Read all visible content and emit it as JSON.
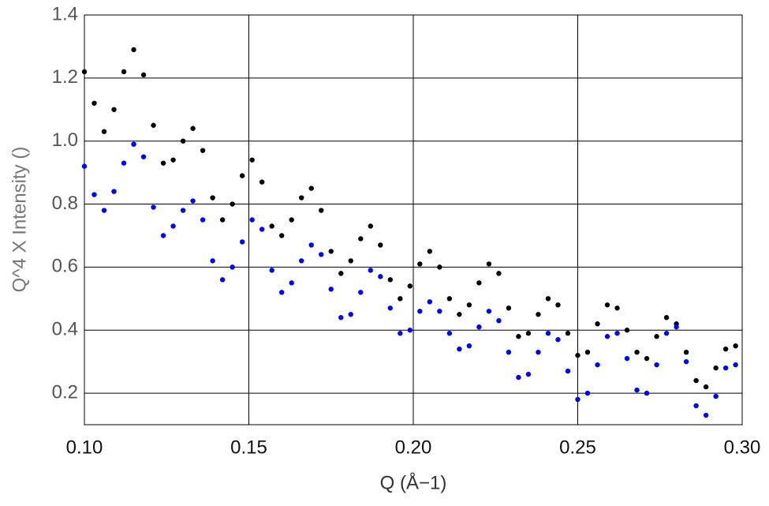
{
  "chart_data": {
    "type": "scatter",
    "x_label": "Q (Å−1)",
    "y_label": "Q^4 X Intensity ()",
    "x": [
      0.1,
      0.103,
      0.106,
      0.109,
      0.112,
      0.115,
      0.118,
      0.121,
      0.124,
      0.127,
      0.13,
      0.133,
      0.136,
      0.139,
      0.142,
      0.145,
      0.148,
      0.151,
      0.154,
      0.157,
      0.16,
      0.163,
      0.166,
      0.169,
      0.172,
      0.175,
      0.178,
      0.181,
      0.184,
      0.187,
      0.19,
      0.193,
      0.196,
      0.199,
      0.202,
      0.205,
      0.208,
      0.211,
      0.214,
      0.217,
      0.22,
      0.223,
      0.226,
      0.229,
      0.232,
      0.235,
      0.238,
      0.241,
      0.244,
      0.247,
      0.25,
      0.253,
      0.256,
      0.259,
      0.262,
      0.265,
      0.268,
      0.271,
      0.274,
      0.277,
      0.28,
      0.283,
      0.286,
      0.289,
      0.292,
      0.295,
      0.298
    ],
    "series": [
      {
        "color": "#000000",
        "values": [
          1.22,
          1.12,
          1.03,
          1.1,
          1.22,
          1.29,
          1.21,
          1.05,
          0.93,
          0.94,
          1.0,
          1.04,
          0.97,
          0.82,
          0.75,
          0.8,
          0.89,
          0.94,
          0.87,
          0.73,
          0.7,
          0.75,
          0.82,
          0.85,
          0.78,
          0.65,
          0.58,
          0.62,
          0.69,
          0.73,
          0.67,
          0.56,
          0.5,
          0.54,
          0.61,
          0.65,
          0.6,
          0.5,
          0.45,
          0.48,
          0.55,
          0.61,
          0.58,
          0.47,
          0.38,
          0.39,
          0.45,
          0.5,
          0.48,
          0.39,
          0.32,
          0.33,
          0.42,
          0.48,
          0.47,
          0.4,
          0.33,
          0.31,
          0.38,
          0.44,
          0.42,
          0.33,
          0.24,
          0.22,
          0.28,
          0.34,
          0.35
        ]
      },
      {
        "color": "#0000ff",
        "values": [
          0.92,
          0.83,
          0.78,
          0.84,
          0.93,
          0.99,
          0.95,
          0.79,
          0.7,
          0.73,
          0.78,
          0.81,
          0.75,
          0.62,
          0.56,
          0.6,
          0.68,
          0.75,
          0.72,
          0.59,
          0.52,
          0.55,
          0.62,
          0.67,
          0.64,
          0.53,
          0.44,
          0.45,
          0.52,
          0.59,
          0.57,
          0.47,
          0.39,
          0.4,
          0.46,
          0.49,
          0.46,
          0.39,
          0.34,
          0.35,
          0.41,
          0.46,
          0.43,
          0.33,
          0.25,
          0.26,
          0.33,
          0.39,
          0.37,
          0.27,
          0.18,
          0.2,
          0.29,
          0.38,
          0.39,
          0.31,
          0.21,
          0.2,
          0.29,
          0.39,
          0.41,
          0.3,
          0.16,
          0.13,
          0.19,
          0.28,
          0.29
        ]
      }
    ],
    "xlim": [
      0.1,
      0.3
    ],
    "ylim": [
      0.1,
      1.4
    ],
    "xticks": [
      {
        "value": 0.1,
        "label": "0.10"
      },
      {
        "value": 0.15,
        "label": "0.15"
      },
      {
        "value": 0.2,
        "label": "0.20"
      },
      {
        "value": 0.25,
        "label": "0.25"
      },
      {
        "value": 0.3,
        "label": "0.30"
      }
    ],
    "yticks": [
      0.2,
      0.4,
      0.6,
      0.8,
      {
        "value": 1.0,
        "label": "1.0"
      },
      1.2,
      1.4
    ],
    "grid": true
  }
}
